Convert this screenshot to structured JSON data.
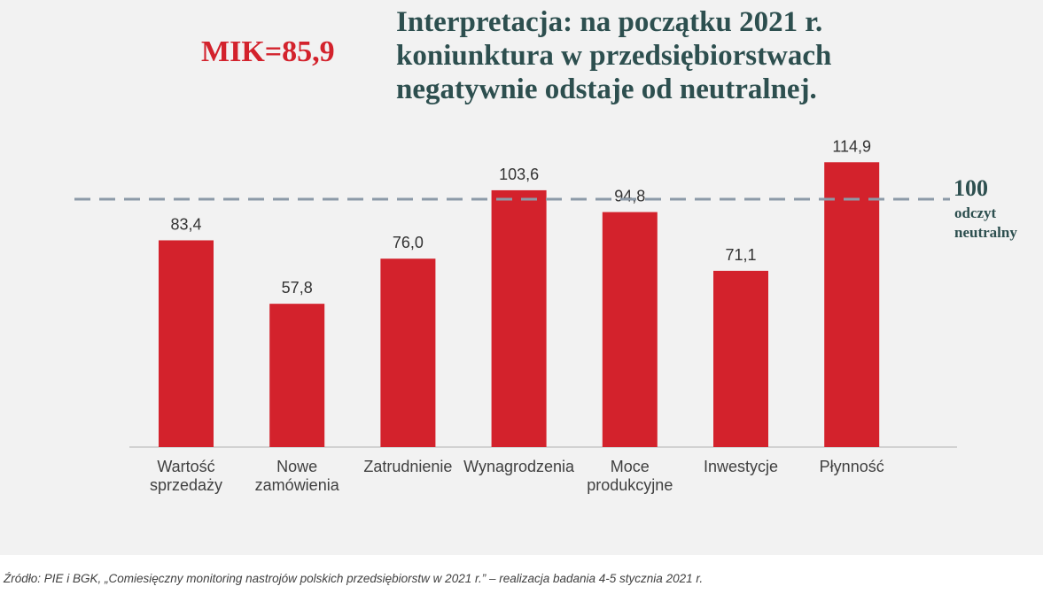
{
  "header": {
    "mik_label": "MIK=85,9",
    "title_lines": [
      "Interpretacja: na początku 2021 r.",
      "koniunktura w przedsiębiorstwach",
      "negatywnie odstaje od neutralnej."
    ]
  },
  "reference": {
    "value_label": "100",
    "caption_lines": [
      "odczyt",
      "neutralny"
    ]
  },
  "colors": {
    "bar": "#d3222c",
    "reference_line": "#8c9aa8",
    "title": "#2d4f4f",
    "mik": "#d3222c",
    "value_label": "#333333"
  },
  "chart_data": {
    "type": "bar",
    "title": "Interpretacja: na początku 2021 r. koniunktura w przedsiębiorstwach negatywnie odstaje od neutralnej.",
    "xlabel": "",
    "ylabel": "",
    "ylim": [
      0,
      120
    ],
    "grid": false,
    "reference_line": 100,
    "categories": [
      [
        "Wartość",
        "sprzedaży"
      ],
      [
        "Nowe",
        "zamówienia"
      ],
      [
        "Zatrudnienie"
      ],
      [
        "Wynagrodzenia"
      ],
      [
        "Moce",
        "produkcyjne"
      ],
      [
        "Inwestycje"
      ],
      [
        "Płynność"
      ]
    ],
    "values": [
      83.4,
      57.8,
      76.0,
      103.6,
      94.8,
      71.1,
      114.9
    ],
    "value_labels": [
      "83,4",
      "57,8",
      "76,0",
      "103,6",
      "94,8",
      "71,1",
      "114,9"
    ]
  },
  "footer": {
    "source": "Źródło: PIE i BGK, „Comiesięczny monitoring nastrojów polskich przedsiębiorstw w 2021 r.” – realizacja badania 4-5 stycznia 2021 r."
  }
}
